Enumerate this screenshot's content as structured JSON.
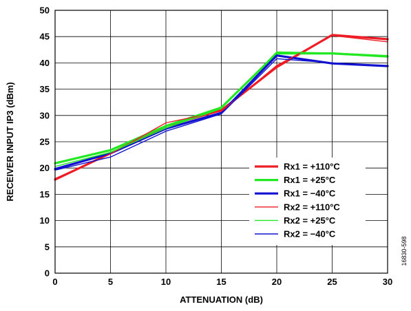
{
  "chart_data": {
    "type": "line",
    "title": "",
    "xlabel": "ATTENUATION (dB)",
    "ylabel": "RECEIVER INPUT IP3 (dBm)",
    "xlim": [
      0,
      30
    ],
    "ylim": [
      0,
      50
    ],
    "xticks": [
      0,
      5,
      10,
      15,
      20,
      25,
      30
    ],
    "yticks": [
      0,
      5,
      10,
      15,
      20,
      25,
      30,
      35,
      40,
      45,
      50
    ],
    "grid": true,
    "legend_position": "lower-right",
    "figure_code": "16830-598",
    "series": [
      {
        "name": "Rx1 = +110°C",
        "color": "#ee1c24",
        "width": "thick",
        "x": [
          0,
          5,
          10,
          15,
          20,
          25,
          30
        ],
        "y": [
          17.8,
          22.8,
          28.0,
          31.0,
          39.2,
          45.3,
          44.5
        ]
      },
      {
        "name": "Rx1 = +25°C",
        "color": "#22e822",
        "width": "thick",
        "x": [
          0,
          5,
          10,
          15,
          20,
          25,
          30
        ],
        "y": [
          20.9,
          23.4,
          28.0,
          31.5,
          41.8,
          41.8,
          41.2
        ]
      },
      {
        "name": "Rx1 = −40°C",
        "color": "#1010d0",
        "width": "thick",
        "x": [
          0,
          5,
          10,
          15,
          20,
          25,
          30
        ],
        "y": [
          19.8,
          22.8,
          27.5,
          30.5,
          41.4,
          39.9,
          39.4
        ]
      },
      {
        "name": "Rx2 = +110°C",
        "color": "#ee1c24",
        "width": "thin",
        "x": [
          0,
          5,
          10,
          15,
          20,
          25,
          30
        ],
        "y": [
          18.0,
          22.7,
          28.6,
          30.8,
          39.5,
          45.2,
          44.0
        ]
      },
      {
        "name": "Rx2 = +25°C",
        "color": "#22e822",
        "width": "thin",
        "x": [
          0,
          5,
          10,
          15,
          20,
          25,
          30
        ],
        "y": [
          20.3,
          23.0,
          27.6,
          31.3,
          42.1,
          41.9,
          41.4
        ]
      },
      {
        "name": "Rx2 = −40°C",
        "color": "#1010d0",
        "width": "thin",
        "x": [
          0,
          5,
          10,
          15,
          20,
          25,
          30
        ],
        "y": [
          19.6,
          22.1,
          27.0,
          30.3,
          40.8,
          40.0,
          39.3
        ]
      }
    ]
  }
}
